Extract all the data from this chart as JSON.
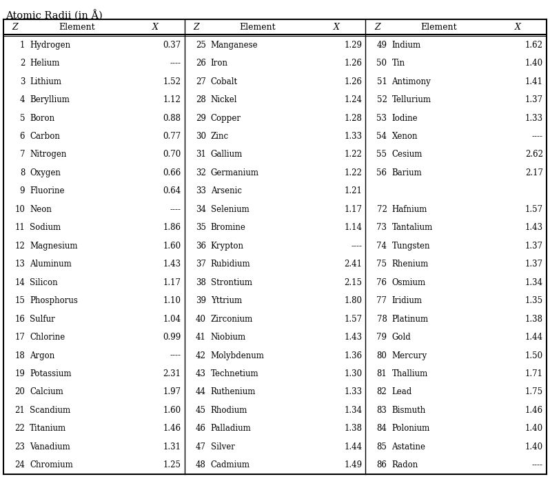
{
  "title": "Atomic Radii (in Å)",
  "col1": [
    [
      1,
      "Hydrogen",
      "0.37"
    ],
    [
      2,
      "Helium",
      "----"
    ],
    [
      3,
      "Lithium",
      "1.52"
    ],
    [
      4,
      "Beryllium",
      "1.12"
    ],
    [
      5,
      "Boron",
      "0.88"
    ],
    [
      6,
      "Carbon",
      "0.77"
    ],
    [
      7,
      "Nitrogen",
      "0.70"
    ],
    [
      8,
      "Oxygen",
      "0.66"
    ],
    [
      9,
      "Fluorine",
      "0.64"
    ],
    [
      10,
      "Neon",
      "----"
    ],
    [
      11,
      "Sodium",
      "1.86"
    ],
    [
      12,
      "Magnesium",
      "1.60"
    ],
    [
      13,
      "Aluminum",
      "1.43"
    ],
    [
      14,
      "Silicon",
      "1.17"
    ],
    [
      15,
      "Phosphorus",
      "1.10"
    ],
    [
      16,
      "Sulfur",
      "1.04"
    ],
    [
      17,
      "Chlorine",
      "0.99"
    ],
    [
      18,
      "Argon",
      "----"
    ],
    [
      19,
      "Potassium",
      "2.31"
    ],
    [
      20,
      "Calcium",
      "1.97"
    ],
    [
      21,
      "Scandium",
      "1.60"
    ],
    [
      22,
      "Titanium",
      "1.46"
    ],
    [
      23,
      "Vanadium",
      "1.31"
    ],
    [
      24,
      "Chromium",
      "1.25"
    ]
  ],
  "col2": [
    [
      25,
      "Manganese",
      "1.29"
    ],
    [
      26,
      "Iron",
      "1.26"
    ],
    [
      27,
      "Cobalt",
      "1.26"
    ],
    [
      28,
      "Nickel",
      "1.24"
    ],
    [
      29,
      "Copper",
      "1.28"
    ],
    [
      30,
      "Zinc",
      "1.33"
    ],
    [
      31,
      "Gallium",
      "1.22"
    ],
    [
      32,
      "Germanium",
      "1.22"
    ],
    [
      33,
      "Arsenic",
      "1.21"
    ],
    [
      34,
      "Selenium",
      "1.17"
    ],
    [
      35,
      "Bromine",
      "1.14"
    ],
    [
      36,
      "Krypton",
      "----"
    ],
    [
      37,
      "Rubidium",
      "2.41"
    ],
    [
      38,
      "Strontium",
      "2.15"
    ],
    [
      39,
      "Yttrium",
      "1.80"
    ],
    [
      40,
      "Zirconium",
      "1.57"
    ],
    [
      41,
      "Niobium",
      "1.43"
    ],
    [
      42,
      "Molybdenum",
      "1.36"
    ],
    [
      43,
      "Technetium",
      "1.30"
    ],
    [
      44,
      "Ruthenium",
      "1.33"
    ],
    [
      45,
      "Rhodium",
      "1.34"
    ],
    [
      46,
      "Palladium",
      "1.38"
    ],
    [
      47,
      "Silver",
      "1.44"
    ],
    [
      48,
      "Cadmium",
      "1.49"
    ]
  ],
  "col3": [
    [
      49,
      "Indium",
      "1.62"
    ],
    [
      50,
      "Tin",
      "1.40"
    ],
    [
      51,
      "Antimony",
      "1.41"
    ],
    [
      52,
      "Tellurium",
      "1.37"
    ],
    [
      53,
      "Iodine",
      "1.33"
    ],
    [
      54,
      "Xenon",
      "----"
    ],
    [
      55,
      "Cesium",
      "2.62"
    ],
    [
      56,
      "Barium",
      "2.17"
    ],
    [
      null,
      "",
      ""
    ],
    [
      72,
      "Hafnium",
      "1.57"
    ],
    [
      73,
      "Tantalium",
      "1.43"
    ],
    [
      74,
      "Tungsten",
      "1.37"
    ],
    [
      75,
      "Rhenium",
      "1.37"
    ],
    [
      76,
      "Osmium",
      "1.34"
    ],
    [
      77,
      "Iridium",
      "1.35"
    ],
    [
      78,
      "Platinum",
      "1.38"
    ],
    [
      79,
      "Gold",
      "1.44"
    ],
    [
      80,
      "Mercury",
      "1.50"
    ],
    [
      81,
      "Thallium",
      "1.71"
    ],
    [
      82,
      "Lead",
      "1.75"
    ],
    [
      83,
      "Bismuth",
      "1.46"
    ],
    [
      84,
      "Polonium",
      "1.40"
    ],
    [
      85,
      "Astatine",
      "1.40"
    ],
    [
      86,
      "Radon",
      "----"
    ]
  ],
  "bg_color": "#ffffff",
  "font_size": 8.5,
  "header_font_size": 9.0,
  "title_font_size": 10.5
}
